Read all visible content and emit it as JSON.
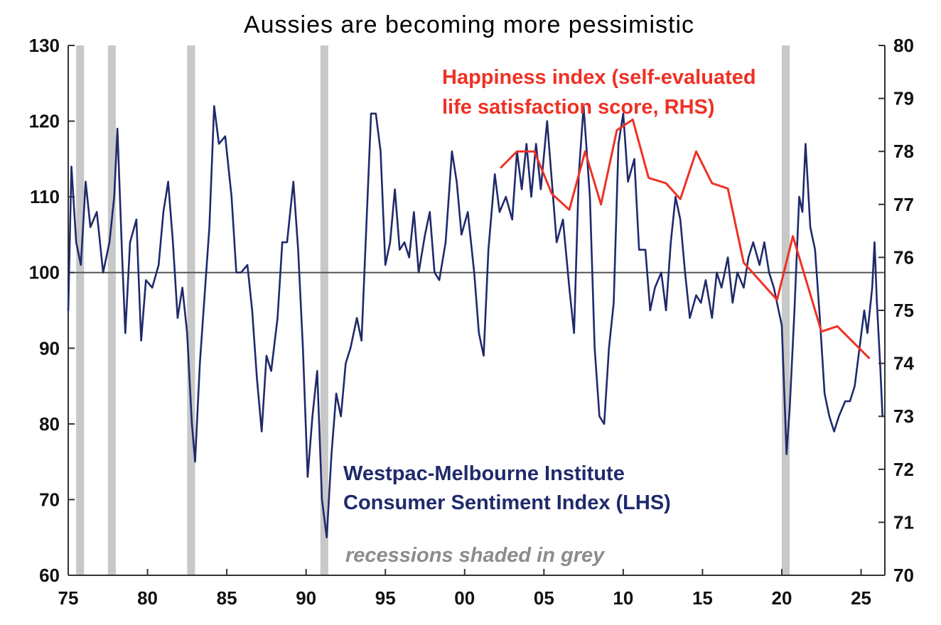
{
  "chart_data": {
    "type": "line",
    "title": "Aussies are becoming more pessimistic",
    "x_axis": {
      "range": [
        1975,
        2026.5
      ],
      "ticks": [
        1975,
        1980,
        1985,
        1990,
        1995,
        2000,
        2005,
        2010,
        2015,
        2020,
        2025
      ],
      "tick_labels": [
        "75",
        "80",
        "85",
        "90",
        "95",
        "00",
        "05",
        "10",
        "15",
        "20",
        "25"
      ]
    },
    "y_left": {
      "range": [
        60,
        130
      ],
      "ticks": [
        60,
        70,
        80,
        90,
        100,
        110,
        120,
        130
      ],
      "tick_labels": [
        "60",
        "70",
        "80",
        "90",
        "100",
        "110",
        "120",
        "130"
      ]
    },
    "y_right": {
      "range": [
        70,
        80
      ],
      "ticks": [
        70,
        71,
        72,
        73,
        74,
        75,
        76,
        77,
        78,
        79,
        80
      ],
      "tick_labels": [
        "70",
        "71",
        "72",
        "73",
        "74",
        "75",
        "76",
        "77",
        "78",
        "79",
        "80"
      ]
    },
    "reference_line": {
      "axis": "left",
      "value": 100
    },
    "recessions": [
      [
        1975.5,
        1976.0
      ],
      [
        1977.5,
        1978.0
      ],
      [
        1982.5,
        1983.0
      ],
      [
        1990.9,
        1991.4
      ],
      [
        2020.0,
        2020.5
      ]
    ],
    "series": [
      {
        "name": "Westpac-Melbourne Institute Consumer Sentiment Index (LHS)",
        "axis": "left",
        "color": "#1f2a6b",
        "points": [
          [
            1975.0,
            95
          ],
          [
            1975.2,
            114
          ],
          [
            1975.5,
            104
          ],
          [
            1975.8,
            101
          ],
          [
            1976.1,
            112
          ],
          [
            1976.4,
            106
          ],
          [
            1976.8,
            108
          ],
          [
            1977.2,
            100
          ],
          [
            1977.6,
            104
          ],
          [
            1977.9,
            110
          ],
          [
            1978.1,
            119
          ],
          [
            1978.4,
            102
          ],
          [
            1978.6,
            92
          ],
          [
            1978.9,
            104
          ],
          [
            1979.3,
            107
          ],
          [
            1979.6,
            91
          ],
          [
            1979.9,
            99
          ],
          [
            1980.3,
            98
          ],
          [
            1980.7,
            101
          ],
          [
            1981.0,
            108
          ],
          [
            1981.3,
            112
          ],
          [
            1981.6,
            104
          ],
          [
            1981.9,
            94
          ],
          [
            1982.2,
            98
          ],
          [
            1982.5,
            92
          ],
          [
            1982.8,
            80
          ],
          [
            1983.0,
            75
          ],
          [
            1983.3,
            88
          ],
          [
            1983.6,
            97
          ],
          [
            1983.9,
            106
          ],
          [
            1984.2,
            122
          ],
          [
            1984.5,
            117
          ],
          [
            1984.9,
            118
          ],
          [
            1985.3,
            110
          ],
          [
            1985.6,
            100
          ],
          [
            1985.9,
            100
          ],
          [
            1986.3,
            101
          ],
          [
            1986.6,
            95
          ],
          [
            1986.9,
            86
          ],
          [
            1987.2,
            79
          ],
          [
            1987.5,
            89
          ],
          [
            1987.8,
            87
          ],
          [
            1988.2,
            94
          ],
          [
            1988.5,
            104
          ],
          [
            1988.8,
            104
          ],
          [
            1989.2,
            112
          ],
          [
            1989.5,
            103
          ],
          [
            1989.8,
            90
          ],
          [
            1990.1,
            73
          ],
          [
            1990.4,
            81
          ],
          [
            1990.7,
            87
          ],
          [
            1991.0,
            70
          ],
          [
            1991.3,
            65
          ],
          [
            1991.6,
            76
          ],
          [
            1991.9,
            84
          ],
          [
            1992.2,
            81
          ],
          [
            1992.5,
            88
          ],
          [
            1992.8,
            90
          ],
          [
            1993.2,
            94
          ],
          [
            1993.5,
            91
          ],
          [
            1993.8,
            106
          ],
          [
            1994.1,
            121
          ],
          [
            1994.4,
            121
          ],
          [
            1994.7,
            116
          ],
          [
            1995.0,
            101
          ],
          [
            1995.3,
            104
          ],
          [
            1995.6,
            111
          ],
          [
            1995.9,
            103
          ],
          [
            1996.2,
            104
          ],
          [
            1996.5,
            102
          ],
          [
            1996.8,
            108
          ],
          [
            1997.1,
            100
          ],
          [
            1997.5,
            105
          ],
          [
            1997.8,
            108
          ],
          [
            1998.1,
            100
          ],
          [
            1998.4,
            99
          ],
          [
            1998.8,
            104
          ],
          [
            1999.2,
            116
          ],
          [
            1999.5,
            112
          ],
          [
            1999.8,
            105
          ],
          [
            2000.2,
            108
          ],
          [
            2000.6,
            100
          ],
          [
            2000.9,
            92
          ],
          [
            2001.2,
            89
          ],
          [
            2001.5,
            103
          ],
          [
            2001.9,
            113
          ],
          [
            2002.2,
            108
          ],
          [
            2002.6,
            110
          ],
          [
            2003.0,
            107
          ],
          [
            2003.3,
            116
          ],
          [
            2003.6,
            111
          ],
          [
            2003.9,
            117
          ],
          [
            2004.2,
            110
          ],
          [
            2004.5,
            117
          ],
          [
            2004.8,
            111
          ],
          [
            2005.2,
            120
          ],
          [
            2005.5,
            112
          ],
          [
            2005.8,
            104
          ],
          [
            2006.2,
            107
          ],
          [
            2006.6,
            98
          ],
          [
            2006.9,
            92
          ],
          [
            2007.2,
            113
          ],
          [
            2007.5,
            122
          ],
          [
            2007.9,
            110
          ],
          [
            2008.2,
            90
          ],
          [
            2008.5,
            81
          ],
          [
            2008.8,
            80
          ],
          [
            2009.1,
            90
          ],
          [
            2009.4,
            96
          ],
          [
            2009.7,
            117
          ],
          [
            2010.0,
            121
          ],
          [
            2010.3,
            112
          ],
          [
            2010.7,
            115
          ],
          [
            2011.0,
            103
          ],
          [
            2011.4,
            103
          ],
          [
            2011.7,
            95
          ],
          [
            2012.0,
            98
          ],
          [
            2012.4,
            100
          ],
          [
            2012.7,
            95
          ],
          [
            2013.0,
            104
          ],
          [
            2013.3,
            110
          ],
          [
            2013.6,
            107
          ],
          [
            2013.9,
            100
          ],
          [
            2014.2,
            94
          ],
          [
            2014.6,
            97
          ],
          [
            2014.9,
            96
          ],
          [
            2015.2,
            99
          ],
          [
            2015.6,
            94
          ],
          [
            2015.9,
            100
          ],
          [
            2016.2,
            98
          ],
          [
            2016.6,
            102
          ],
          [
            2016.9,
            96
          ],
          [
            2017.2,
            100
          ],
          [
            2017.6,
            98
          ],
          [
            2017.9,
            102
          ],
          [
            2018.2,
            104
          ],
          [
            2018.6,
            101
          ],
          [
            2018.9,
            104
          ],
          [
            2019.2,
            100
          ],
          [
            2019.5,
            98
          ],
          [
            2019.8,
            95
          ],
          [
            2020.0,
            93
          ],
          [
            2020.3,
            76
          ],
          [
            2020.5,
            82
          ],
          [
            2020.8,
            95
          ],
          [
            2021.1,
            110
          ],
          [
            2021.3,
            108
          ],
          [
            2021.5,
            117
          ],
          [
            2021.8,
            106
          ],
          [
            2022.1,
            103
          ],
          [
            2022.4,
            94
          ],
          [
            2022.7,
            84
          ],
          [
            2023.0,
            81
          ],
          [
            2023.3,
            79
          ],
          [
            2023.6,
            81
          ],
          [
            2024.0,
            83
          ],
          [
            2024.3,
            83
          ],
          [
            2024.6,
            85
          ],
          [
            2024.9,
            90
          ],
          [
            2025.2,
            95
          ],
          [
            2025.4,
            92
          ],
          [
            2025.7,
            98
          ],
          [
            2025.85,
            104
          ],
          [
            2026.0,
            96
          ],
          [
            2026.2,
            88
          ],
          [
            2026.35,
            81
          ]
        ]
      },
      {
        "name": "Happiness index (self-evaluated life satisfaction score, RHS)",
        "axis": "right",
        "color": "#ee3124",
        "points": [
          [
            2002.3,
            77.7
          ],
          [
            2003.3,
            78.0
          ],
          [
            2004.4,
            78.0
          ],
          [
            2005.5,
            77.2
          ],
          [
            2006.6,
            76.9
          ],
          [
            2007.6,
            78.0
          ],
          [
            2008.6,
            77.0
          ],
          [
            2009.6,
            78.4
          ],
          [
            2010.6,
            78.6
          ],
          [
            2011.6,
            77.5
          ],
          [
            2012.7,
            77.4
          ],
          [
            2013.6,
            77.1
          ],
          [
            2014.6,
            78.0
          ],
          [
            2015.6,
            77.4
          ],
          [
            2016.6,
            77.3
          ],
          [
            2017.6,
            75.9
          ],
          [
            2019.7,
            75.2
          ],
          [
            2020.7,
            76.4
          ],
          [
            2022.5,
            74.6
          ],
          [
            2023.5,
            74.7
          ],
          [
            2025.5,
            74.1
          ]
        ]
      }
    ],
    "annotations": {
      "blue_label_line1": "Westpac-Melbourne Institute",
      "blue_label_line2": "Consumer Sentiment Index (LHS)",
      "red_label_line1": "Happiness index (self-evaluated",
      "red_label_line2": "life satisfaction score, RHS)",
      "recession_note": "recessions shaded in grey"
    },
    "colors": {
      "recession": "#c8c8c8",
      "axis": "#333333"
    },
    "grid": false,
    "legend": "none (inline annotations)"
  }
}
